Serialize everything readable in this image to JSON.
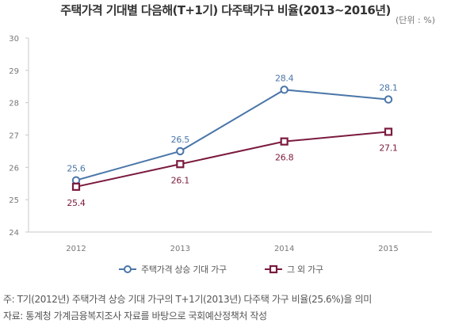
{
  "title": "주택가격 기대별 다음해(T+1기) 다주택가구 비율(2013~2016년)",
  "unit": "(단위 : %)",
  "chart_data": {
    "type": "line",
    "title": "주택가격 기대별 다음해(T+1기) 다주택가구 비율(2013~2016년)",
    "unit": "(단위 : %)",
    "categories": [
      "2012",
      "2013",
      "2014",
      "2015"
    ],
    "ylim": [
      24,
      30
    ],
    "yticks": [
      24,
      25,
      26,
      27,
      28,
      29,
      30
    ],
    "grid": false,
    "legend_position": "bottom",
    "series": [
      {
        "name": "주택가격 상승 기대 가구",
        "values": [
          25.6,
          26.5,
          28.4,
          28.1
        ],
        "labels": [
          "25.6",
          "26.5",
          "28.4",
          "28.1"
        ],
        "color": "#4a76a8",
        "marker": "circle",
        "label_position": "above"
      },
      {
        "name": "그 외 가구",
        "values": [
          25.4,
          26.1,
          26.8,
          27.1
        ],
        "labels": [
          "25.4",
          "26.1",
          "26.8",
          "27.1"
        ],
        "color": "#7b1a3e",
        "marker": "square",
        "label_position": "below"
      }
    ]
  },
  "footnotes": [
    "주: T기(2012년) 주택가격 상승 기대 가구의 T+1기(2013년) 다주택 가구 비율(25.6%)을 의미",
    "자료: 통계청 가계금융복지조사 자료를 바탕으로 국회예산정책처 작성"
  ]
}
